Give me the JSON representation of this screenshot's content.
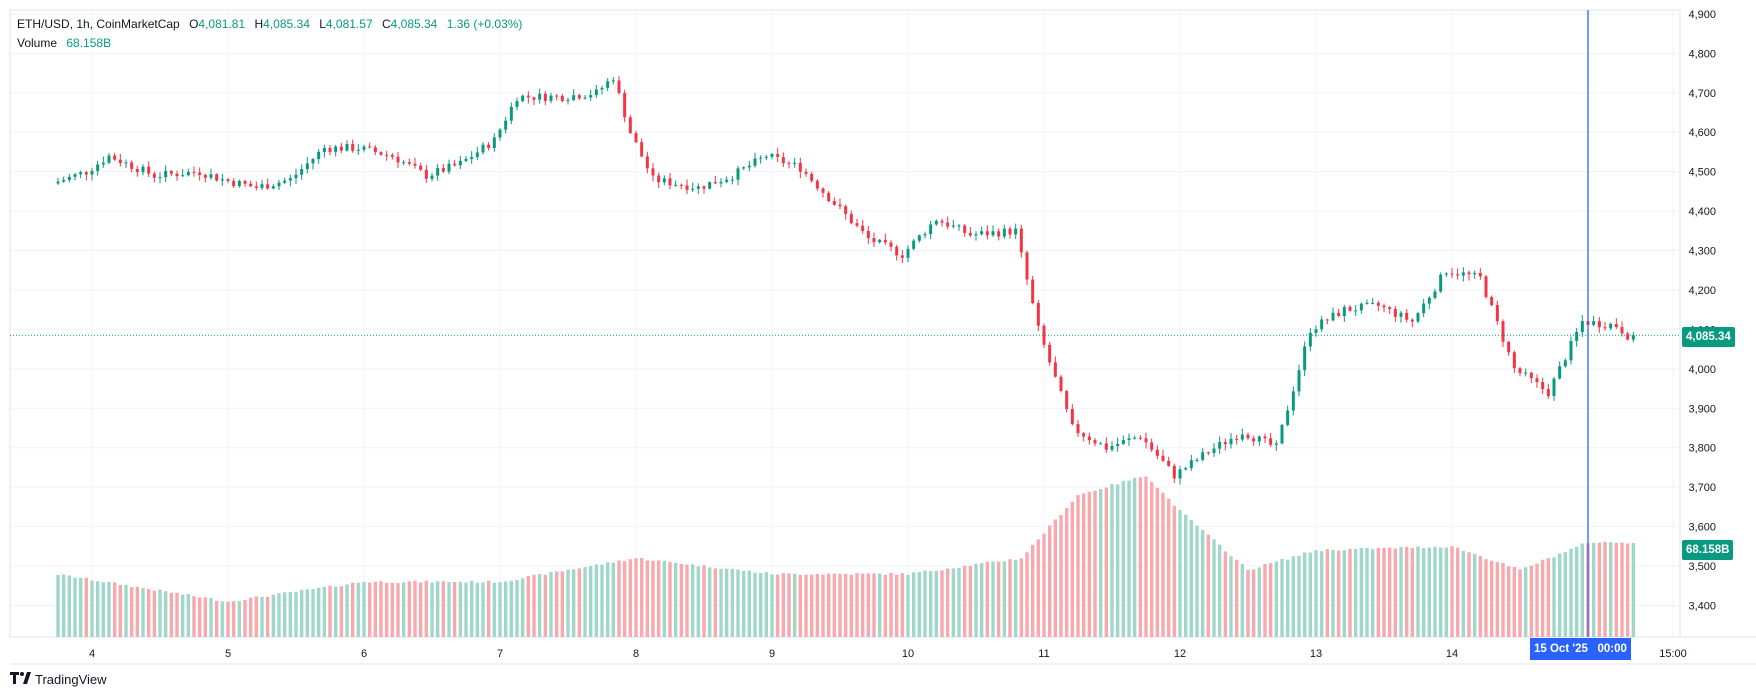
{
  "legend": {
    "symbol": "ETH/USD, 1h, CoinMarketCap",
    "o_label": "O",
    "o_value": "4,081.81",
    "h_label": "H",
    "h_value": "4,085.34",
    "l_label": "L",
    "l_value": "4,081.57",
    "c_label": "C",
    "c_value": "4,085.34",
    "change": "1.36 (+0.03%)",
    "volume_label": "Volume",
    "volume_value": "68.158B"
  },
  "price_tag": "4,085.34",
  "volume_tag": "68.158B",
  "crosshair_label": "15 Oct '25   00:00",
  "branding": "TradingView",
  "colors": {
    "up": "#089981",
    "down": "#f23645",
    "vol_up": "#9fd8c8",
    "vol_down": "#f7a9ae",
    "crosshair": "#2962ff",
    "grid": "#f0f3fa",
    "text": "#131722"
  },
  "chart_data": {
    "type": "candlestick",
    "title": "ETH/USD, 1h, CoinMarketCap",
    "x_ticks": [
      "4",
      "5",
      "6",
      "7",
      "8",
      "9",
      "10",
      "11",
      "12",
      "13",
      "14",
      "15 Oct '25",
      "15:00"
    ],
    "y_ticks": [
      "3,400",
      "3,500",
      "3,600",
      "3,700",
      "3,800",
      "3,900",
      "4,000",
      "4,100",
      "4,200",
      "4,300",
      "4,400",
      "4,500",
      "4,600",
      "4,700",
      "4,800",
      "4,900"
    ],
    "ylim": [
      3320,
      4910
    ],
    "last_price": 4085.34,
    "volume_last": "68.158B",
    "price_path": [
      [
        "3 Oct 18:00",
        4470
      ],
      [
        "4 Oct 00:00",
        4500
      ],
      [
        "4 Oct 04:00",
        4540
      ],
      [
        "4 Oct 12:00",
        4490
      ],
      [
        "4 Oct 20:00",
        4500
      ],
      [
        "5 Oct 00:00",
        4480
      ],
      [
        "5 Oct 06:00",
        4460
      ],
      [
        "5 Oct 12:00",
        4480
      ],
      [
        "5 Oct 18:00",
        4560
      ],
      [
        "6 Oct 00:00",
        4560
      ],
      [
        "6 Oct 06:00",
        4540
      ],
      [
        "6 Oct 12:00",
        4490
      ],
      [
        "6 Oct 18:00",
        4520
      ],
      [
        "7 Oct 00:00",
        4580
      ],
      [
        "7 Oct 04:00",
        4690
      ],
      [
        "7 Oct 12:00",
        4690
      ],
      [
        "7 Oct 18:00",
        4700
      ],
      [
        "7 Oct 21:00",
        4740
      ],
      [
        "8 Oct 00:00",
        4600
      ],
      [
        "8 Oct 04:00",
        4480
      ],
      [
        "8 Oct 12:00",
        4460
      ],
      [
        "8 Oct 18:00",
        4490
      ],
      [
        "9 Oct 00:00",
        4540
      ],
      [
        "9 Oct 06:00",
        4510
      ],
      [
        "9 Oct 12:00",
        4420
      ],
      [
        "9 Oct 18:00",
        4330
      ],
      [
        "10 Oct 00:00",
        4290
      ],
      [
        "10 Oct 06:00",
        4380
      ],
      [
        "10 Oct 12:00",
        4340
      ],
      [
        "10 Oct 20:00",
        4350
      ],
      [
        "11 Oct 00:00",
        4100
      ],
      [
        "11 Oct 06:00",
        3850
      ],
      [
        "11 Oct 12:00",
        3800
      ],
      [
        "11 Oct 18:00",
        3830
      ],
      [
        "12 Oct 00:00",
        3730
      ],
      [
        "12 Oct 06:00",
        3790
      ],
      [
        "12 Oct 12:00",
        3840
      ],
      [
        "12 Oct 18:00",
        3800
      ],
      [
        "13 Oct 00:00",
        4100
      ],
      [
        "13 Oct 06:00",
        4150
      ],
      [
        "13 Oct 12:00",
        4160
      ],
      [
        "13 Oct 18:00",
        4120
      ],
      [
        "14 Oct 00:00",
        4250
      ],
      [
        "14 Oct 06:00",
        4230
      ],
      [
        "14 Oct 12:00",
        4000
      ],
      [
        "14 Oct 18:00",
        3940
      ],
      [
        "15 Oct 00:00",
        4120
      ],
      [
        "15 Oct 06:00",
        4110
      ],
      [
        "15 Oct 08:00",
        4085
      ]
    ],
    "volume_series": [
      [
        "3 Oct",
        3.52
      ],
      [
        "5 Oct",
        3.41
      ],
      [
        "6 Oct",
        3.46
      ],
      [
        "7 Oct",
        3.46
      ],
      [
        "8 Oct",
        3.52
      ],
      [
        "9 Oct",
        3.48
      ],
      [
        "10 Oct",
        3.48
      ],
      [
        "10 Oct 20:00",
        3.52
      ],
      [
        "11 Oct 06:00",
        3.68
      ],
      [
        "11 Oct 18:00",
        3.73
      ],
      [
        "12 Oct 00:00",
        3.64
      ],
      [
        "12 Oct 12:00",
        3.49
      ],
      [
        "13 Oct",
        3.54
      ],
      [
        "14 Oct",
        3.55
      ],
      [
        "14 Oct 12:00",
        3.49
      ],
      [
        "15 Oct",
        3.56
      ]
    ]
  }
}
